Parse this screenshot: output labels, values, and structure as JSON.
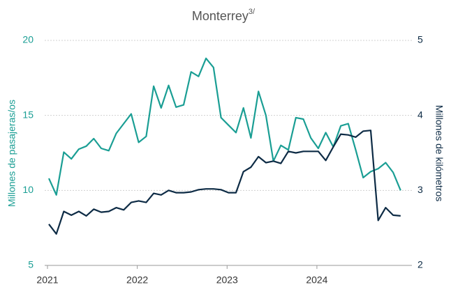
{
  "chart_data": {
    "type": "line",
    "title": "Monterrey",
    "title_superscript": "3/",
    "ylabel": "Millones de pasajeras/os",
    "y2label": "Millones de kilómetros",
    "categories": [
      "2021",
      null,
      null,
      null,
      null,
      null,
      null,
      null,
      null,
      null,
      null,
      null,
      "2022",
      null,
      null,
      null,
      null,
      null,
      null,
      null,
      null,
      null,
      null,
      null,
      "2023",
      null,
      null,
      null,
      null,
      null,
      null,
      null,
      null,
      null,
      null,
      null,
      "2024",
      null,
      null,
      null,
      null,
      null,
      null,
      null,
      null,
      null,
      null,
      null
    ],
    "series": [
      {
        "color": "#1a9e94",
        "axis": "y",
        "values": [
          10.8,
          9.7,
          12.55,
          12.1,
          12.75,
          12.95,
          13.45,
          12.8,
          12.65,
          13.8,
          14.45,
          15.1,
          13.2,
          13.6,
          16.95,
          15.5,
          17.0,
          15.55,
          15.7,
          17.9,
          17.6,
          18.8,
          18.2,
          14.85,
          14.35,
          13.85,
          15.5,
          13.5,
          16.6,
          15.0,
          11.95,
          13.0,
          12.7,
          14.85,
          14.75,
          13.5,
          12.8,
          13.85,
          12.9,
          14.3,
          14.45,
          12.7,
          10.85,
          11.25,
          11.45,
          11.85,
          11.2,
          10.0
        ]
      },
      {
        "color": "#0d2b45",
        "axis": "y2",
        "values": [
          2.55,
          2.42,
          2.72,
          2.67,
          2.72,
          2.66,
          2.75,
          2.71,
          2.72,
          2.77,
          2.74,
          2.84,
          2.86,
          2.84,
          2.96,
          2.94,
          3.0,
          2.97,
          2.97,
          2.98,
          3.01,
          3.02,
          3.02,
          3.01,
          2.97,
          2.97,
          3.25,
          3.31,
          3.45,
          3.37,
          3.39,
          3.36,
          3.52,
          3.5,
          3.52,
          3.52,
          3.52,
          3.4,
          3.58,
          3.75,
          3.74,
          3.71,
          3.79,
          3.8,
          2.6,
          2.77,
          2.67,
          2.66
        ]
      }
    ],
    "ylim": [
      5,
      20
    ],
    "yticks": [
      5,
      10,
      15,
      20
    ],
    "y2lim": [
      2,
      5
    ],
    "y2ticks": [
      2,
      3,
      4,
      5
    ],
    "grid": true
  }
}
